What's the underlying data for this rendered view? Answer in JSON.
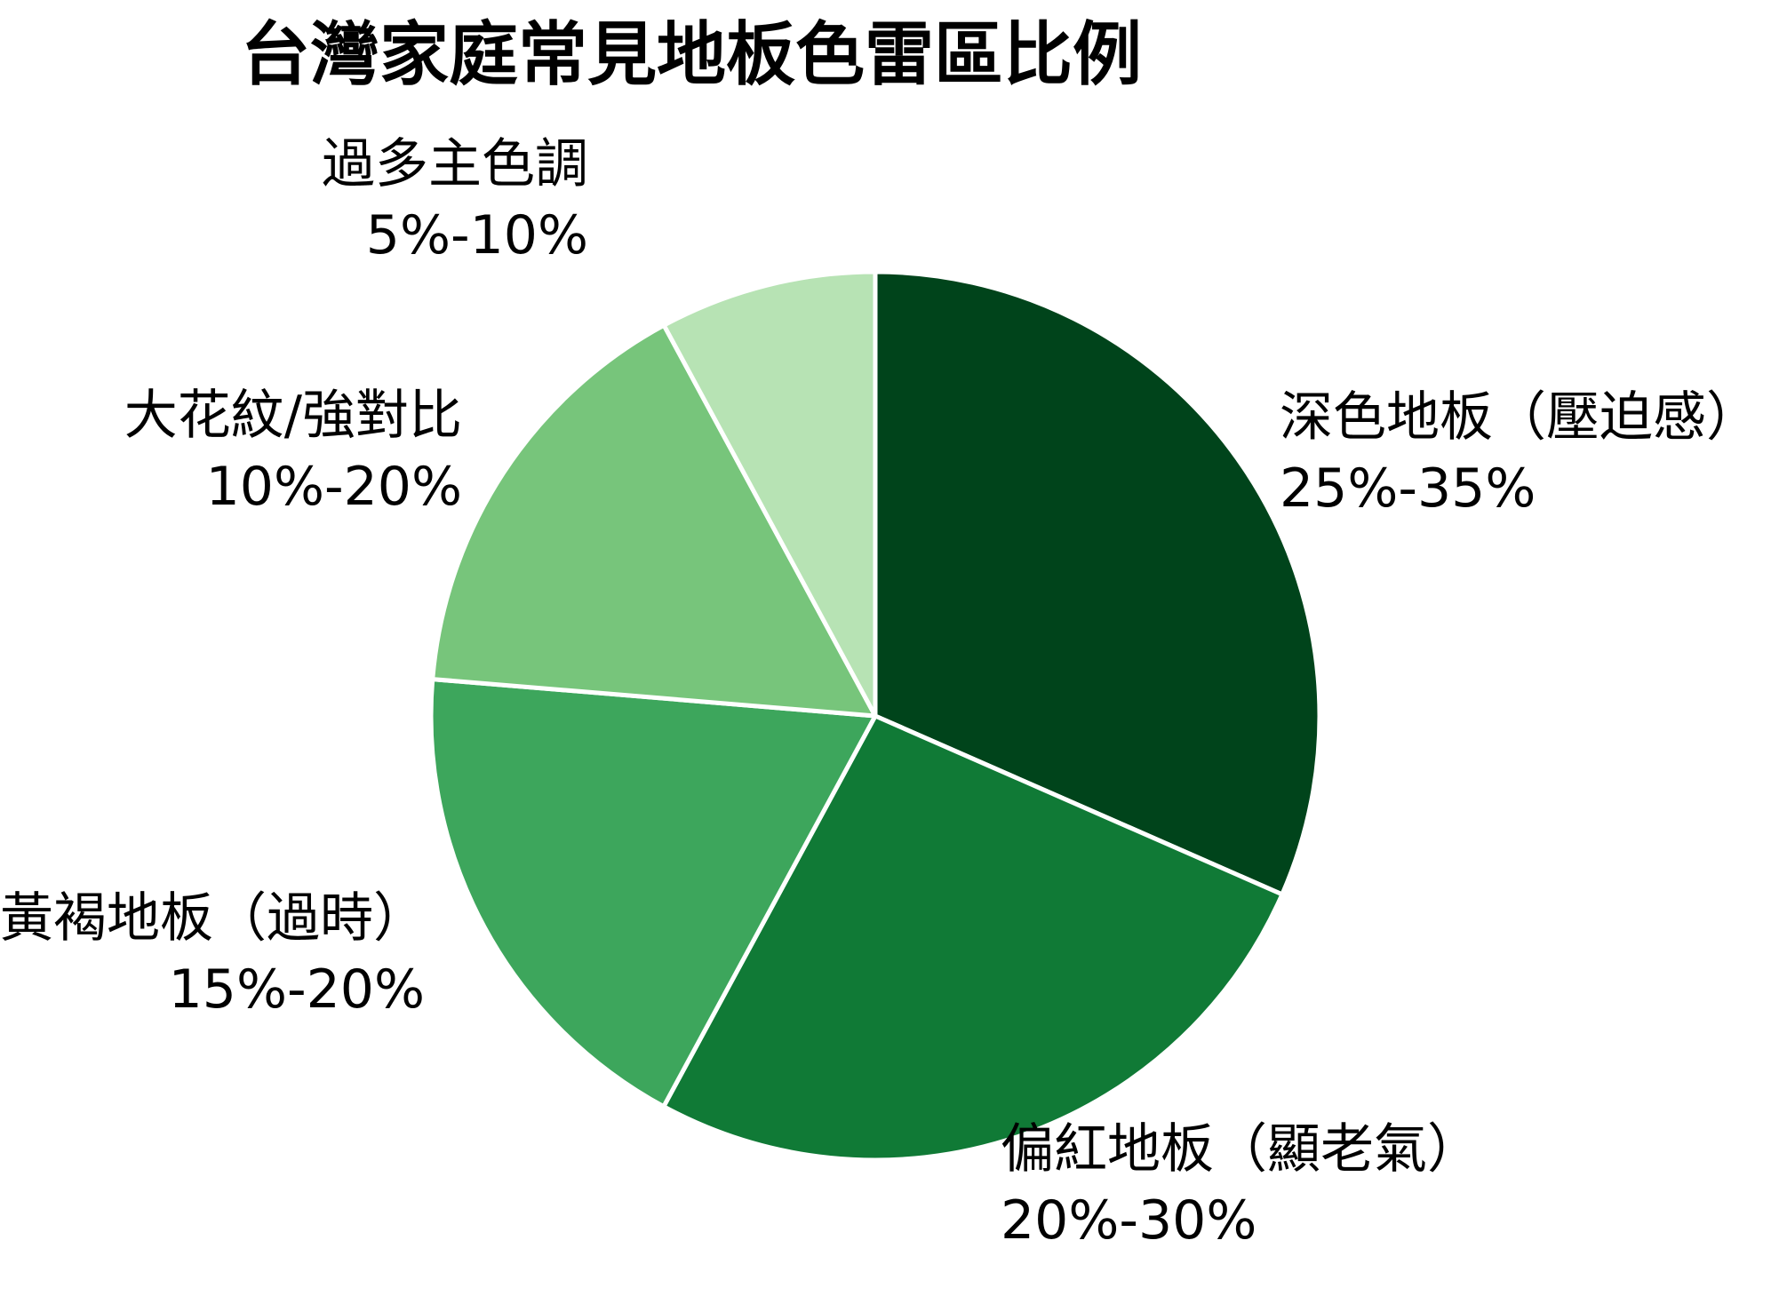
{
  "chart_data": {
    "type": "pie",
    "title": "台灣家庭常見地板色雷區比例",
    "direction": "clockwise",
    "start_angle": "12-oclock",
    "background_color": "#ffffff",
    "stroke": {
      "color": "#ffffff",
      "width": 5
    },
    "slices": [
      {
        "label": "深色地板（壓迫感）",
        "range": "25%-35%",
        "midpoint_value": 30,
        "fraction": 0.3158,
        "color": "#00441b",
        "label_position": "right"
      },
      {
        "label": "偏紅地板（顯老氣）",
        "range": "20%-30%",
        "midpoint_value": 25,
        "fraction": 0.2632,
        "color": "#107a36",
        "label_position": "bottom-right"
      },
      {
        "label": "黃褐地板（過時）",
        "range": "15%-20%",
        "midpoint_value": 17.5,
        "fraction": 0.1842,
        "color": "#3da65c",
        "label_position": "left"
      },
      {
        "label": "大花紋/強對比",
        "range": "10%-20%",
        "midpoint_value": 15,
        "fraction": 0.1579,
        "color": "#77c57b",
        "label_position": "upper-left"
      },
      {
        "label": "過多主色調",
        "range": "5%-10%",
        "midpoint_value": 7.5,
        "fraction": 0.0789,
        "color": "#b7e3b4",
        "label_position": "top"
      }
    ]
  }
}
